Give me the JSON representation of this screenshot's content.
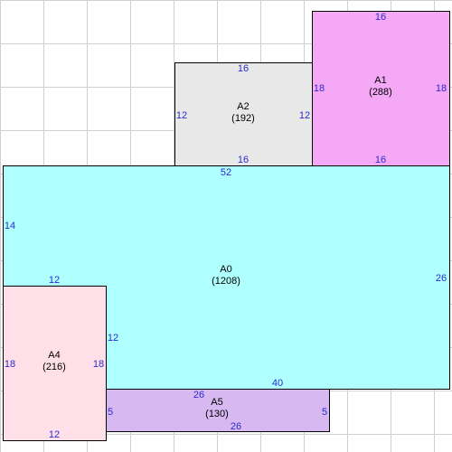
{
  "regions": {
    "A0": {
      "name": "A0",
      "area": "(1208)",
      "color": "#b0ffff"
    },
    "A1": {
      "name": "A1",
      "area": "(288)",
      "color": "#f5a8f5"
    },
    "A2": {
      "name": "A2",
      "area": "(192)",
      "color": "#e8e8e8"
    },
    "A4": {
      "name": "A4",
      "area": "(216)",
      "color": "#ffe0e8"
    },
    "A5": {
      "name": "A5",
      "area": "(130)",
      "color": "#d8b8f0"
    }
  },
  "dimensions": {
    "a1_top": "16",
    "a1_left": "18",
    "a1_right": "18",
    "a1_bottom": "16",
    "a2_top": "16",
    "a2_left": "12",
    "a2_right": "12",
    "a2_bottom": "16",
    "a0_top": "52",
    "a0_left": "14",
    "a0_right": "26",
    "a0_bottom": "40",
    "a0_inner_top": "12",
    "a0_inner_left": "12",
    "a0_inner_bottom": "26",
    "a4_left": "18",
    "a4_right": "18",
    "a4_bottom": "12",
    "a5_left": "5",
    "a5_right": "5",
    "a5_bottom": "26"
  },
  "grid_color": "#d0d0d0",
  "dimension_color": "#2a2ad0"
}
